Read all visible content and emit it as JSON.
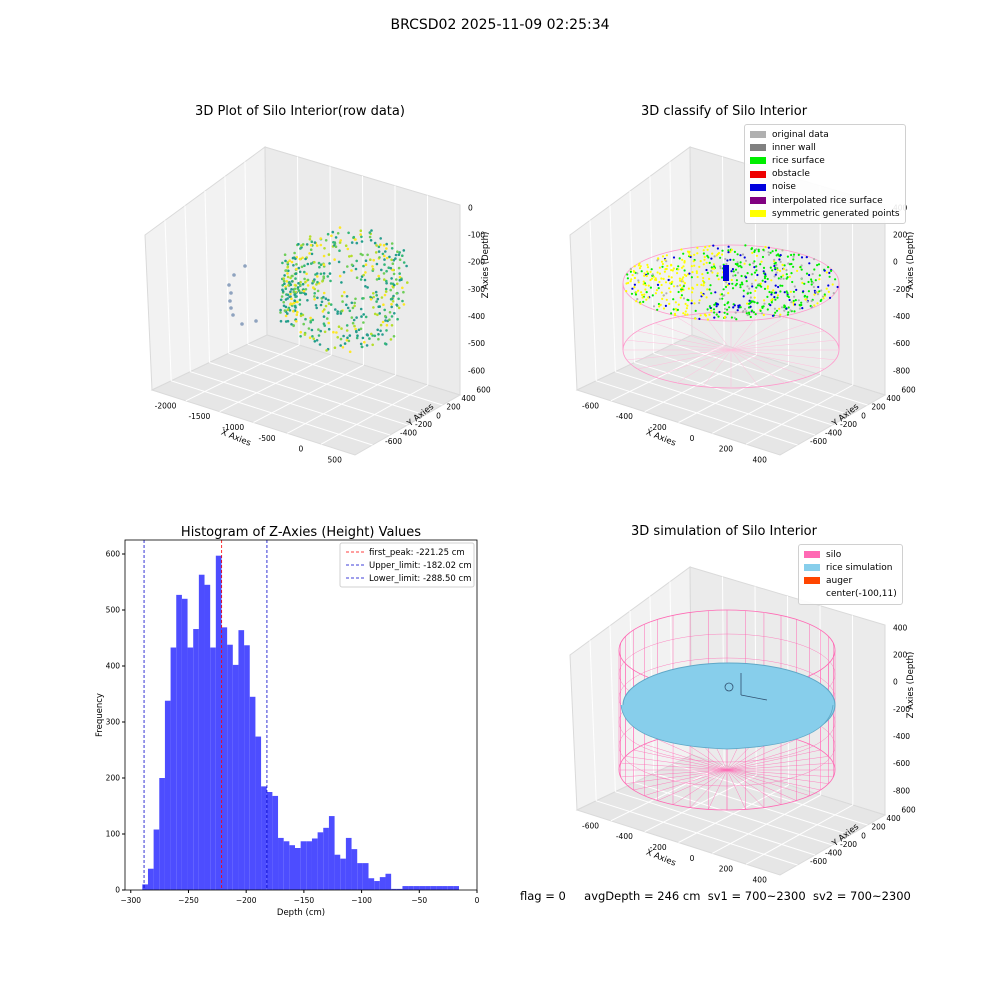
{
  "suptitle": "BRCSD02 2025-11-09 02:25:34",
  "panel1": {
    "title": "3D Plot of Silo Interior(row data)",
    "xlabel": "X Axies",
    "ylabel": "Y Axies",
    "zlabel": "Z Axies (Depth)",
    "xticks": [
      "-2000",
      "-1500",
      "-1000",
      "-500",
      "0",
      "500"
    ],
    "yticks": [
      "600",
      "400",
      "200",
      "0",
      "-200",
      "-400",
      "-600"
    ],
    "zticks": [
      "0",
      "-100",
      "-200",
      "-300",
      "-400",
      "-500",
      "-600"
    ]
  },
  "panel2": {
    "title": "3D classify of Silo Interior",
    "xlabel": "X Axies",
    "ylabel": "Y Axies",
    "zlabel": "Z Axies (Depth)",
    "xticks": [
      "-600",
      "-400",
      "-200",
      "0",
      "200",
      "400"
    ],
    "yticks": [
      "600",
      "400",
      "200",
      "0",
      "-200",
      "-400",
      "-600"
    ],
    "zticks": [
      "400",
      "200",
      "0",
      "-200",
      "-400",
      "-600",
      "-800"
    ],
    "legend": [
      {
        "label": "original data",
        "color": "#b0b0b0"
      },
      {
        "label": "inner wall",
        "color": "#808080"
      },
      {
        "label": "rice surface",
        "color": "#00ee00"
      },
      {
        "label": "obstacle",
        "color": "#ee0000"
      },
      {
        "label": "noise",
        "color": "#0000dd"
      },
      {
        "label": "interpolated rice surface",
        "color": "#800080"
      },
      {
        "label": "symmetric generated points",
        "color": "#ffff00"
      }
    ]
  },
  "panel4": {
    "title": "3D simulation of Silo Interior",
    "xlabel": "X Axies",
    "ylabel": "Y Axies",
    "zlabel": "Z Axies (Depth)",
    "xticks": [
      "-600",
      "-400",
      "-200",
      "0",
      "200",
      "400"
    ],
    "yticks": [
      "600",
      "400",
      "200",
      "0",
      "-200",
      "-400",
      "-600"
    ],
    "zticks": [
      "400",
      "200",
      "0",
      "-200",
      "-400",
      "-600",
      "-800"
    ],
    "legend": [
      {
        "label": "silo",
        "color": "#ff69b4"
      },
      {
        "label": "rice simulation",
        "color": "#87ceeb"
      },
      {
        "label": "auger",
        "color": "#ff4500"
      },
      {
        "label": "center(-100,11)",
        "color": ""
      }
    ]
  },
  "status": {
    "flag": "flag = 0",
    "avg_depth": "avgDepth = 246 cm",
    "sv1": "sv1 = 700~2300",
    "sv2": "sv2 = 700~2300"
  },
  "chart_data": {
    "type": "bar",
    "title": "Histogram of Z-Axies (Height) Values",
    "xlabel": "Depth (cm)",
    "ylabel": "Frequency",
    "xlim": [
      -305,
      0
    ],
    "ylim": [
      0,
      625
    ],
    "xticks": [
      -300,
      -250,
      -200,
      -150,
      -100,
      -50,
      0
    ],
    "yticks": [
      0,
      100,
      200,
      300,
      400,
      500,
      600
    ],
    "bin_edges": [
      -290.0,
      -285.1,
      -280.2,
      -275.3,
      -270.4,
      -265.5,
      -260.6,
      -255.7,
      -250.8,
      -245.9,
      -241.0,
      -236.1,
      -231.2,
      -226.3,
      -221.4,
      -216.5,
      -211.6,
      -206.7,
      -201.8,
      -196.9,
      -192.0,
      -187.1,
      -182.2,
      -177.3,
      -172.4,
      -167.5,
      -162.6,
      -157.7,
      -152.8,
      -147.9,
      -143.0,
      -138.1,
      -133.2,
      -128.3,
      -123.4,
      -118.5,
      -113.6,
      -108.7,
      -103.8,
      -98.9,
      -94.0,
      -89.1,
      -84.2,
      -79.3,
      -74.4,
      -69.5,
      -64.6,
      -59.7,
      -54.8,
      -49.9,
      -45.0,
      -40.1,
      -35.2,
      -30.3,
      -25.4,
      -20.5,
      -15.6
    ],
    "values": [
      10,
      38,
      108,
      200,
      338,
      433,
      527,
      520,
      433,
      466,
      563,
      545,
      433,
      597,
      469,
      438,
      402,
      464,
      437,
      345,
      274,
      185,
      175,
      168,
      93,
      87,
      80,
      75,
      87,
      87,
      92,
      103,
      111,
      132,
      63,
      56,
      93,
      73,
      48,
      48,
      21,
      16,
      23,
      29,
      2,
      2,
      7,
      7,
      7,
      7,
      7,
      7,
      7,
      7,
      7,
      7
    ],
    "reference_lines": [
      {
        "name": "first_peak: -221.25 cm",
        "x": -221.25,
        "color": "#ff0000"
      },
      {
        "name": "Upper_limit: -182.02 cm",
        "x": -182.02,
        "color": "#0000cc"
      },
      {
        "name": "Lower_limit: -288.50 cm",
        "x": -288.5,
        "color": "#0000cc"
      }
    ],
    "bar_color": "#4d4dff",
    "legend_position": "top-right"
  }
}
